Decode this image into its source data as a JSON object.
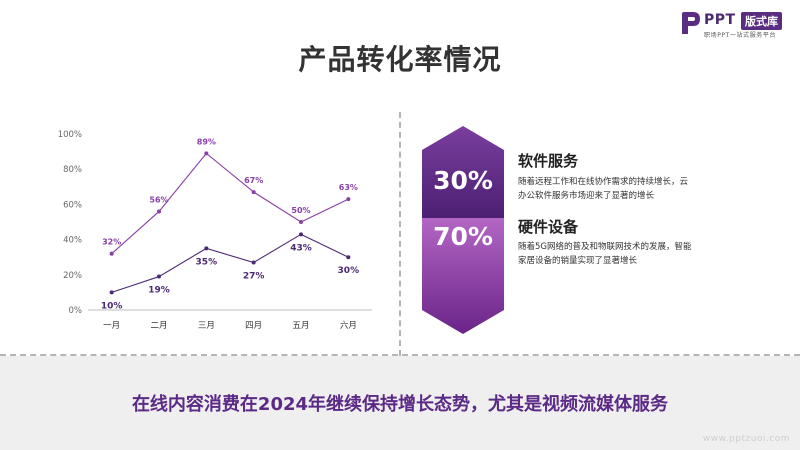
{
  "brand": {
    "logo_text": "PPT",
    "badge": "版式库",
    "tagline": "职场PPT一站式服务平台"
  },
  "title": "产品转化率情况",
  "chart_data": {
    "type": "line",
    "title": "",
    "xlabel": "",
    "ylabel": "",
    "categories": [
      "一月",
      "二月",
      "三月",
      "四月",
      "五月",
      "六月"
    ],
    "y_ticks": [
      "0%",
      "20%",
      "40%",
      "60%",
      "80%",
      "100%"
    ],
    "ylim": [
      0,
      100
    ],
    "grid": false,
    "series": [
      {
        "values": [
          32,
          56,
          89,
          67,
          50,
          63
        ],
        "labels": [
          "32%",
          "56%",
          "89%",
          "67%",
          "50%",
          "63%"
        ],
        "label_position": "above",
        "color": "#8a3fa6"
      },
      {
        "values": [
          10,
          19,
          35,
          27,
          43,
          30
        ],
        "labels": [
          "10%",
          "19%",
          "35%",
          "27%",
          "43%",
          "30%"
        ],
        "label_position": "below",
        "color": "#4b2a73"
      }
    ]
  },
  "stats": [
    {
      "value": "30%",
      "title": "软件服务",
      "desc_lines": [
        "随着远程工作和在线协作需求的持续增长，云",
        "办公软件服务市场迎来了显著的增长"
      ],
      "color_top": "#7a3e9e",
      "color_bottom": "#4a1e70"
    },
    {
      "value": "70%",
      "title": "硬件设备",
      "desc_lines": [
        "随着5G网络的普及和物联网技术的发展，智能",
        "家居设备的销量实现了显著增长"
      ],
      "color_top": "#b366c4",
      "color_bottom": "#6a2488"
    }
  ],
  "footer": "在线内容消费在2024年继续保持增长态势，尤其是视频流媒体服务",
  "watermark": "www.pptzuoi.com"
}
